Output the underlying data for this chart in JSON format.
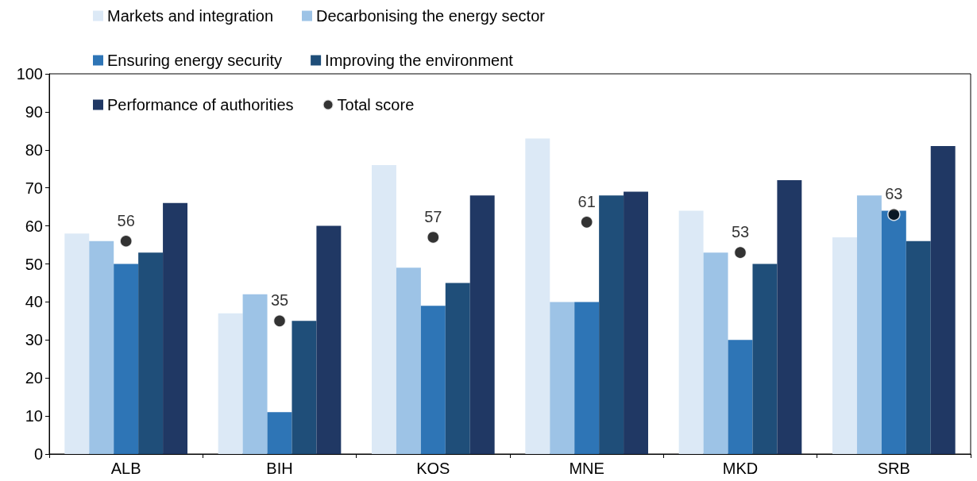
{
  "chart_data": {
    "type": "bar",
    "categories": [
      "ALB",
      "BIH",
      "KOS",
      "MNE",
      "MKD",
      "SRB"
    ],
    "series": [
      {
        "name": "Markets and integration",
        "color": "#dce9f6",
        "values": [
          58,
          37,
          76,
          83,
          64,
          57
        ]
      },
      {
        "name": "Decarbonising the energy sector",
        "color": "#9dc3e6",
        "values": [
          56,
          42,
          49,
          40,
          53,
          68
        ]
      },
      {
        "name": "Ensuring energy security",
        "color": "#2e75b6",
        "values": [
          50,
          11,
          39,
          40,
          30,
          64
        ]
      },
      {
        "name": "Improving the environment",
        "color": "#1f4e79",
        "values": [
          53,
          35,
          45,
          68,
          50,
          56
        ]
      },
      {
        "name": "Performance of authorities",
        "color": "#203864",
        "values": [
          66,
          60,
          68,
          69,
          72,
          81
        ]
      },
      {
        "name": "Total score",
        "type": "scatter",
        "color": "#000000",
        "marker": "circle",
        "x": [
          "ALB",
          "BIH",
          "KOS",
          "MNE",
          "MKD",
          "SRB"
        ],
        "values": [
          56,
          35,
          57,
          61,
          53,
          63
        ],
        "value_labels": [
          "56",
          "35",
          "57",
          "61",
          "53",
          "63"
        ]
      }
    ],
    "ylim": [
      0,
      100
    ],
    "yticks": [
      0,
      10,
      20,
      30,
      40,
      50,
      60,
      70,
      80,
      90,
      100
    ],
    "grid": false,
    "legend": "top"
  }
}
